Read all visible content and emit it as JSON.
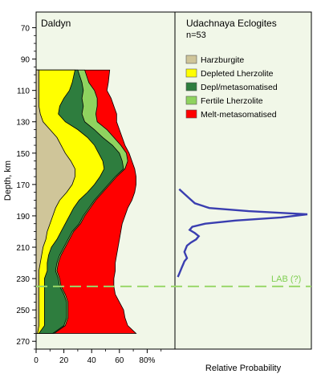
{
  "chart_data": [
    {
      "type": "area",
      "title": "Daldyn",
      "xlabel": "",
      "ylabel": "Depth, km",
      "x_ticks": [
        0,
        20,
        40,
        60,
        80
      ],
      "x_tick_labels": [
        "0",
        "20",
        "40",
        "60",
        "80%"
      ],
      "xlim": [
        0,
        100
      ],
      "ylim": [
        275,
        60
      ],
      "y_ticks": [
        70,
        90,
        110,
        130,
        150,
        170,
        190,
        210,
        230,
        250,
        270
      ],
      "legend": [
        {
          "name": "Harzburgite",
          "color": "#cfc599"
        },
        {
          "name": "Depleted Lherzolite",
          "color": "#ffff00"
        },
        {
          "name": "Depl/metasomatised",
          "color": "#2e7d3e"
        },
        {
          "name": "Fertile Lherzolite",
          "color": "#8fd35f"
        },
        {
          "name": "Melt-metasomatised",
          "color": "#ff0000"
        }
      ],
      "depth": [
        97,
        105,
        110,
        115,
        120,
        125,
        130,
        135,
        140,
        145,
        150,
        155,
        160,
        165,
        170,
        175,
        180,
        185,
        190,
        195,
        200,
        205,
        210,
        215,
        220,
        225,
        230,
        235,
        240,
        245,
        250,
        255,
        260,
        265
      ],
      "series": [
        {
          "name": "Harzburgite",
          "cumulative": [
            2,
            2,
            2,
            2,
            2,
            3,
            5,
            10,
            15,
            18,
            21,
            25,
            28,
            28,
            26,
            22,
            17,
            14,
            12,
            10,
            8,
            7,
            5,
            4,
            3,
            2,
            2,
            2,
            2,
            2,
            2,
            2,
            2,
            1
          ]
        },
        {
          "name": "Depleted Lherzolite",
          "cumulative": [
            28,
            26,
            24,
            20,
            17,
            16,
            21,
            30,
            37,
            42,
            45,
            48,
            49,
            46,
            42,
            37,
            31,
            27,
            24,
            21,
            18,
            15,
            11,
            9,
            8,
            8,
            6,
            6,
            6,
            6,
            6,
            6,
            6,
            2
          ]
        },
        {
          "name": "Depl/metasomatised",
          "cumulative": [
            30,
            33,
            34,
            33,
            34,
            33,
            35,
            42,
            48,
            55,
            60,
            62,
            63,
            57,
            52,
            47,
            42,
            38,
            34,
            31,
            26,
            23,
            20,
            17,
            15,
            14,
            16,
            17,
            20,
            22,
            22,
            22,
            20,
            12
          ]
        },
        {
          "name": "Fertile Lherzolite",
          "cumulative": [
            35,
            38,
            42,
            44,
            44,
            43,
            44,
            51,
            56,
            61,
            65,
            66,
            64,
            58,
            53,
            48,
            43,
            39,
            35,
            32,
            27,
            24,
            21,
            18,
            16,
            15,
            17,
            18,
            21,
            23,
            23,
            23,
            21,
            13
          ]
        },
        {
          "name": "Melt-metasomatised",
          "cumulative": [
            53,
            52,
            51,
            54,
            56,
            58,
            58,
            60,
            62,
            64,
            67,
            69,
            71,
            72,
            72,
            71,
            69,
            66,
            64,
            62,
            61,
            60,
            59,
            58,
            57,
            57,
            56,
            56,
            57,
            60,
            63,
            64,
            66,
            72
          ]
        }
      ]
    },
    {
      "type": "line",
      "title": "Udachnaya Eclogites",
      "subtitle": "n=53",
      "xlabel": "Relative Probability",
      "series": [
        {
          "depth": [
            173,
            176,
            179,
            182,
            185,
            187,
            189,
            191,
            193,
            195,
            197,
            199,
            201,
            203,
            205,
            207,
            209,
            211,
            213,
            215,
            217,
            219,
            221,
            223,
            225,
            227,
            229
          ],
          "probability": [
            0.02,
            0.06,
            0.1,
            0.14,
            0.25,
            0.55,
            1.0,
            0.8,
            0.45,
            0.22,
            0.12,
            0.1,
            0.14,
            0.17,
            0.15,
            0.11,
            0.08,
            0.07,
            0.06,
            0.07,
            0.08,
            0.06,
            0.05,
            0.04,
            0.03,
            0.02,
            0.01
          ]
        }
      ]
    }
  ],
  "lab_line": {
    "label": "LAB (?)",
    "depth": 235
  }
}
